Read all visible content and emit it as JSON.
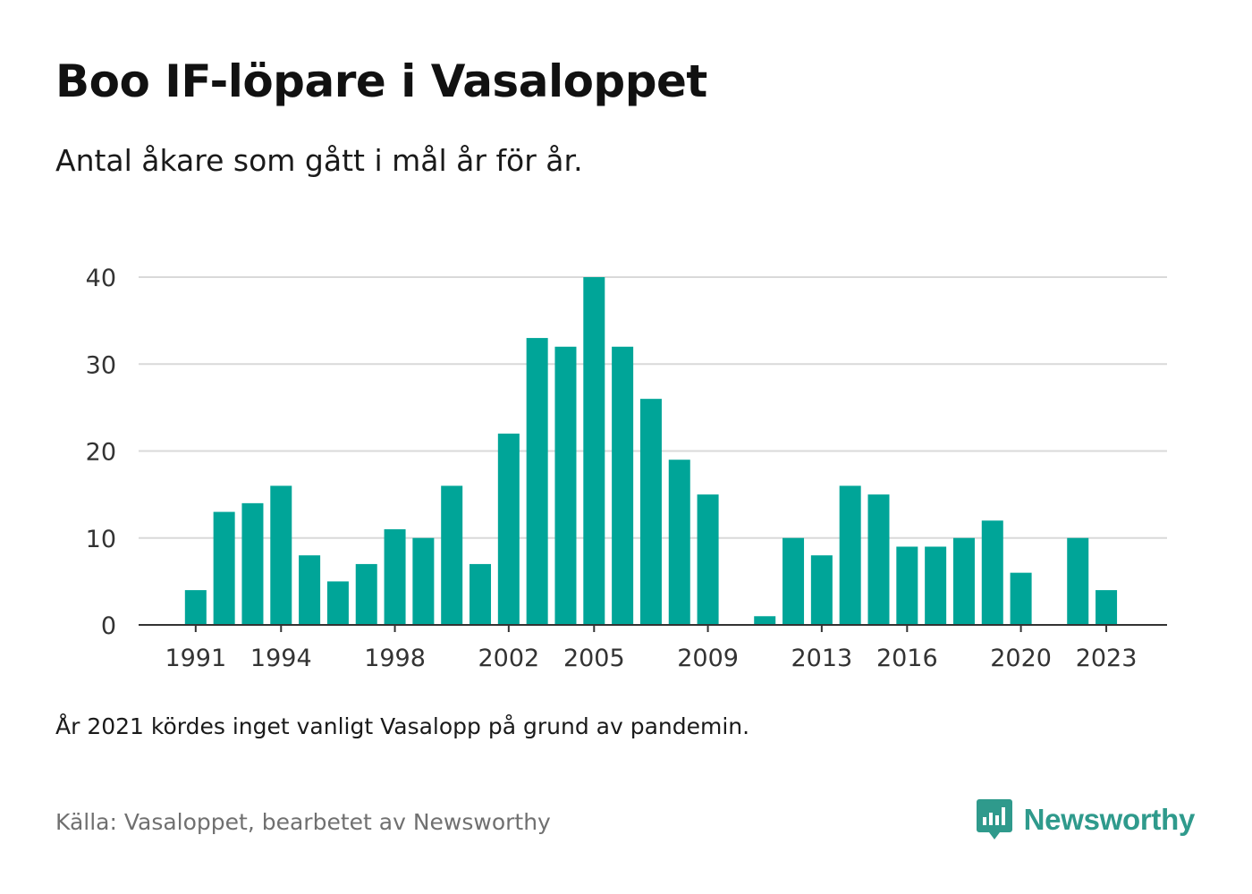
{
  "title": "Boo IF-löpare i Vasaloppet",
  "subtitle": "Antal åkare som gått i mål år för år.",
  "note": "År 2021 kördes inget vanligt Vasalopp på grund av pandemin.",
  "source": "Källa: Vasaloppet, bearbetet av Newsworthy",
  "brand": {
    "name": "Newsworthy",
    "color": "#2f9a8c",
    "icon": "newsworthy-chart-icon"
  },
  "colors": {
    "bar": "#00a598",
    "grid": "#d9d9d9",
    "axis": "#333333"
  },
  "chart_data": {
    "type": "bar",
    "title": "Boo IF-löpare i Vasaloppet",
    "subtitle": "Antal åkare som gått i mål år för år.",
    "xlabel": "",
    "ylabel": "",
    "ylim": [
      0,
      40
    ],
    "yticks": [
      0,
      10,
      20,
      30,
      40
    ],
    "xtick_labels": [
      "1991",
      "1994",
      "1998",
      "2002",
      "2005",
      "2009",
      "2013",
      "2016",
      "2020",
      "2023"
    ],
    "grid": true,
    "legend": "none",
    "categories": [
      1990,
      1991,
      1992,
      1993,
      1994,
      1995,
      1996,
      1997,
      1998,
      1999,
      2000,
      2001,
      2002,
      2003,
      2004,
      2005,
      2006,
      2007,
      2008,
      2009,
      2010,
      2011,
      2012,
      2013,
      2014,
      2015,
      2016,
      2017,
      2018,
      2019,
      2020,
      2021,
      2022,
      2023,
      2024
    ],
    "values": [
      0,
      4,
      13,
      14,
      16,
      8,
      5,
      7,
      11,
      10,
      16,
      7,
      22,
      33,
      32,
      40,
      32,
      26,
      19,
      15,
      0,
      1,
      10,
      8,
      16,
      15,
      9,
      9,
      10,
      12,
      6,
      null,
      10,
      4,
      null
    ]
  }
}
